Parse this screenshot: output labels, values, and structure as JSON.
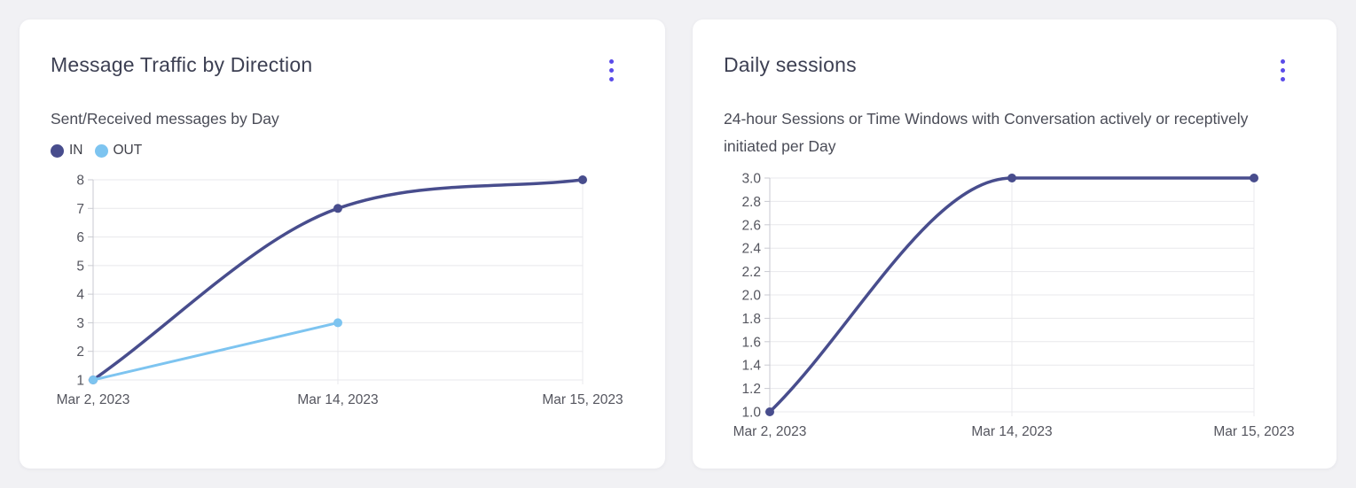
{
  "theme": {
    "accent": "#5a4be9",
    "page_bg": "#f1f1f4",
    "card_bg": "#ffffff",
    "text_primary": "#3d4053",
    "text_secondary": "#4a4c57",
    "grid_color": "#e8e8ec",
    "axis_color": "#c9cad1",
    "tick_text": "#54555e"
  },
  "cards": [
    {
      "title": "Message Traffic by Direction",
      "subtitle": "Sent/Received messages by Day",
      "menu_icon": "kebab-menu-icon"
    },
    {
      "title": "Daily sessions",
      "subtitle": "24-hour Sessions or Time Windows with Conversation actively or receptively initiated per Day",
      "menu_icon": "kebab-menu-icon"
    }
  ],
  "chart_data": [
    {
      "type": "line",
      "title": "Message Traffic by Direction",
      "subtitle": "Sent/Received messages by Day",
      "categories": [
        "Mar 2, 2023",
        "Mar 14, 2023",
        "Mar 15, 2023"
      ],
      "series": [
        {
          "name": "IN",
          "color": "#484d8d",
          "values": [
            1,
            7,
            8
          ]
        },
        {
          "name": "OUT",
          "color": "#7dc4f0",
          "values": [
            1,
            3,
            null
          ]
        }
      ],
      "ylim": [
        1,
        8
      ],
      "yticks": [
        1,
        2,
        3,
        4,
        5,
        6,
        7,
        8
      ],
      "ytick_labels": [
        "1",
        "2",
        "3",
        "4",
        "5",
        "6",
        "7",
        "8"
      ],
      "grid": true,
      "legend_position": "top-left",
      "curve": "monotone"
    },
    {
      "type": "line",
      "title": "Daily sessions",
      "subtitle": "24-hour Sessions or Time Windows with Conversation actively or receptively initiated per Day",
      "categories": [
        "Mar 2, 2023",
        "Mar 14, 2023",
        "Mar 15, 2023"
      ],
      "series": [
        {
          "color": "#484d8d",
          "values": [
            1,
            3,
            3
          ]
        }
      ],
      "ylim": [
        1,
        3
      ],
      "yticks": [
        1,
        1.2,
        1.4,
        1.6,
        1.8,
        2,
        2.2,
        2.4,
        2.6,
        2.8,
        3
      ],
      "ytick_labels": [
        "1.0",
        "1.2",
        "1.4",
        "1.6",
        "1.8",
        "2.0",
        "2.2",
        "2.4",
        "2.6",
        "2.8",
        "3.0"
      ],
      "grid": true,
      "legend_position": "none",
      "curve": "monotone"
    }
  ]
}
